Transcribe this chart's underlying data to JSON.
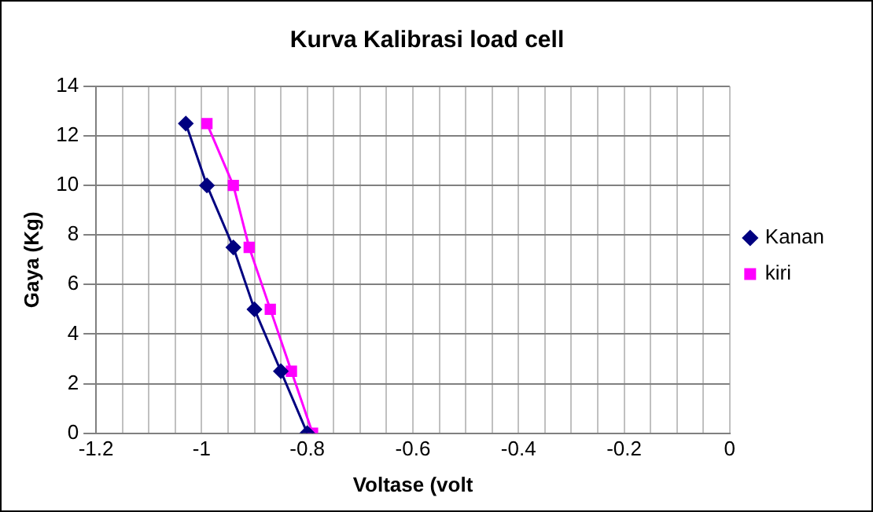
{
  "chart_data": {
    "type": "line",
    "title": "Kurva Kalibrasi load cell",
    "xlabel": "Voltase (volt",
    "ylabel": "Gaya (Kg)",
    "series": [
      {
        "name": "Kanan",
        "color": "#000080",
        "marker": "diamond",
        "x": [
          -1.03,
          -0.99,
          -0.94,
          -0.9,
          -0.85,
          -0.8
        ],
        "values": [
          12.5,
          10,
          7.5,
          5,
          2.5,
          0
        ]
      },
      {
        "name": "kiri",
        "color": "#ff00ff",
        "marker": "square",
        "x": [
          -0.99,
          -0.94,
          -0.91,
          -0.87,
          -0.83,
          -0.79
        ],
        "values": [
          12.5,
          10,
          7.5,
          5,
          2.5,
          0
        ]
      }
    ],
    "xlim": [
      -1.2,
      0
    ],
    "xticks": [
      -1.2,
      {
        "value": -1.15,
        "label": null
      },
      {
        "value": -1.1,
        "label": null
      },
      {
        "value": -1.05,
        "label": null
      },
      -1,
      {
        "value": -0.95,
        "label": null
      },
      {
        "value": -0.9,
        "label": null
      },
      {
        "value": -0.85,
        "label": null
      },
      -0.8,
      {
        "value": -0.75,
        "label": null
      },
      {
        "value": -0.7,
        "label": null
      },
      {
        "value": -0.65,
        "label": null
      },
      -0.6,
      {
        "value": -0.55,
        "label": null
      },
      {
        "value": -0.5,
        "label": null
      },
      {
        "value": -0.45,
        "label": null
      },
      -0.4,
      {
        "value": -0.35,
        "label": null
      },
      {
        "value": -0.3,
        "label": null
      },
      {
        "value": -0.25,
        "label": null
      },
      -0.2,
      {
        "value": -0.15,
        "label": null
      },
      {
        "value": -0.1,
        "label": null
      },
      {
        "value": -0.05,
        "label": null
      },
      0
    ],
    "ylim": [
      0,
      14
    ],
    "yticks": [
      0,
      2,
      4,
      6,
      8,
      10,
      12,
      14
    ],
    "grid": true,
    "legend": "right",
    "line_style": "solid"
  }
}
